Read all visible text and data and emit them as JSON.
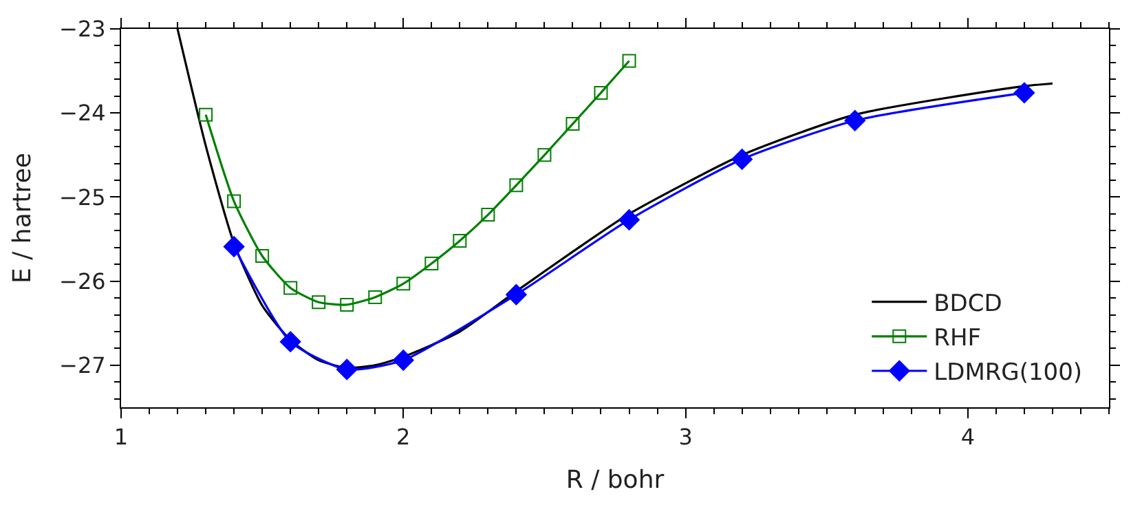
{
  "chart_data": {
    "type": "line",
    "xlabel": "R / bohr",
    "ylabel": "E / hartree",
    "xlim": [
      1,
      4.5
    ],
    "xticks": [
      1,
      2,
      3,
      4
    ],
    "ylim": [
      -27.5,
      -23
    ],
    "yticks": [
      -27,
      -26,
      -25,
      -24,
      -23
    ],
    "legend": "bottom right",
    "series": [
      {
        "name": "BDCD",
        "color": "#000000",
        "marker": "none",
        "x": [
          1.2,
          1.3,
          1.4,
          1.5,
          1.6,
          1.7,
          1.8,
          1.9,
          2.0,
          2.2,
          2.4,
          2.6,
          2.8,
          3.2,
          3.6,
          4.2,
          4.3
        ],
        "values": [
          -23.0,
          -24.39,
          -25.55,
          -26.29,
          -26.7,
          -26.94,
          -27.03,
          -27.0,
          -26.9,
          -26.6,
          -26.12,
          -25.65,
          -25.2,
          -24.5,
          -24.02,
          -23.68,
          -23.65
        ]
      },
      {
        "name": "RHF",
        "color": "#008000",
        "marker": "square",
        "x": [
          1.3,
          1.4,
          1.5,
          1.6,
          1.7,
          1.8,
          1.9,
          2.0,
          2.1,
          2.2,
          2.3,
          2.4,
          2.5,
          2.6,
          2.7,
          2.8
        ],
        "values": [
          -24.02,
          -25.05,
          -25.7,
          -26.08,
          -26.25,
          -26.28,
          -26.19,
          -26.03,
          -25.79,
          -25.52,
          -25.21,
          -24.86,
          -24.5,
          -24.13,
          -23.76,
          -23.38
        ]
      },
      {
        "name": "LDMRG(100)",
        "color": "#0000ff",
        "marker": "diamond",
        "x": [
          1.4,
          1.6,
          1.8,
          2.0,
          2.4,
          2.8,
          3.2,
          3.6,
          4.2
        ],
        "values": [
          -25.59,
          -26.72,
          -27.05,
          -26.94,
          -26.16,
          -25.27,
          -24.55,
          -24.09,
          -23.76
        ]
      }
    ]
  }
}
